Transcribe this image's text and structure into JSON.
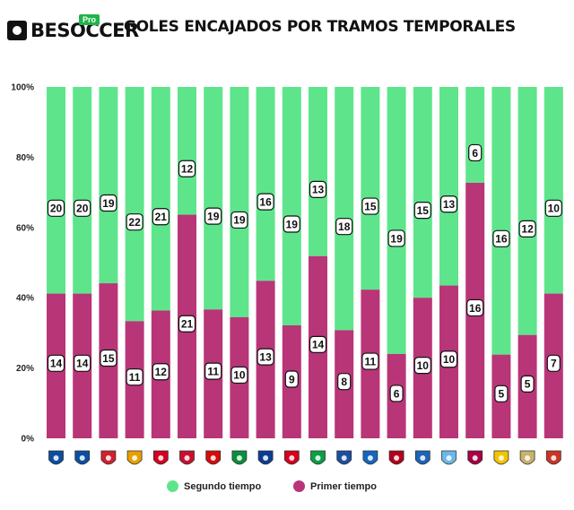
{
  "header": {
    "logo_text": "BESOCCER",
    "logo_badge": "Pro",
    "title": "GOLES ENCAJADOS POR TRAMOS TEMPORALES"
  },
  "colors": {
    "segundo": "#5ee58b",
    "primer": "#b83578"
  },
  "chart_data": {
    "type": "bar",
    "stacked": "percent",
    "title": "GOLES ENCAJADOS POR TRAMOS TEMPORALES",
    "y_ticks": [
      "0%",
      "20%",
      "40%",
      "60%",
      "80%",
      "100%"
    ],
    "ylim": [
      0,
      100
    ],
    "categories": [
      "Levante",
      "Real Oviedo",
      "Girona",
      "Valencia",
      "Sevilla",
      "Mallorca",
      "Athletic Club",
      "Elche",
      "Real Sociedad",
      "Rayo Vallecano",
      "Real Betis",
      "Alavés",
      "Getafe",
      "Osasuna",
      "Espanyol",
      "Celta",
      "Barcelona",
      "Villarreal",
      "Real Madrid",
      "Atlético de Madrid"
    ],
    "category_icons": [
      "levante-crest-icon",
      "oviedo-crest-icon",
      "girona-crest-icon",
      "valencia-crest-icon",
      "sevilla-crest-icon",
      "mallorca-crest-icon",
      "athletic-crest-icon",
      "elche-crest-icon",
      "real-sociedad-crest-icon",
      "rayo-crest-icon",
      "betis-crest-icon",
      "alaves-crest-icon",
      "getafe-crest-icon",
      "osasuna-crest-icon",
      "espanyol-crest-icon",
      "celta-crest-icon",
      "barcelona-crest-icon",
      "villarreal-crest-icon",
      "real-madrid-crest-icon",
      "atletico-crest-icon"
    ],
    "series": [
      {
        "name": "Primer tiempo",
        "values": [
          14,
          14,
          15,
          11,
          12,
          21,
          11,
          10,
          13,
          9,
          14,
          8,
          11,
          6,
          10,
          10,
          16,
          5,
          5,
          7
        ]
      },
      {
        "name": "Segundo tiempo",
        "values": [
          20,
          20,
          19,
          22,
          21,
          12,
          19,
          19,
          16,
          19,
          13,
          18,
          15,
          19,
          15,
          13,
          6,
          16,
          12,
          10
        ]
      }
    ],
    "legend": {
      "placement": "bottom",
      "items": [
        "Segundo tiempo",
        "Primer tiempo"
      ]
    },
    "grid": false
  },
  "crest_colors": [
    "#0b4da2",
    "#0a4ea3",
    "#d0202e",
    "#e8a000",
    "#d4001f",
    "#c8102e",
    "#d60a0a",
    "#0a8f3c",
    "#0a3d91",
    "#d6001c",
    "#0a9f45",
    "#1b4fa0",
    "#1565c0",
    "#b3001b",
    "#1d63b8",
    "#6db7e8",
    "#a50044",
    "#f2c400",
    "#c9b26b",
    "#cb3524"
  ]
}
